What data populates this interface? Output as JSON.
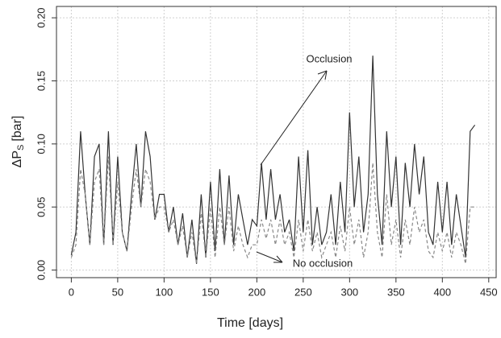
{
  "chart_data": {
    "type": "line",
    "x_label": "Time [days]",
    "y_label": {
      "main": "ΔP",
      "sub": "S",
      "unit": "[bar]"
    },
    "annotations": [
      {
        "text": "Occlusion"
      },
      {
        "text": "No occlusion"
      }
    ],
    "x": [
      0,
      5,
      10,
      15,
      20,
      25,
      30,
      35,
      40,
      45,
      50,
      55,
      60,
      65,
      70,
      75,
      80,
      85,
      90,
      95,
      100,
      105,
      110,
      115,
      120,
      125,
      130,
      135,
      140,
      145,
      150,
      155,
      160,
      165,
      170,
      175,
      180,
      185,
      190,
      195,
      200,
      205,
      210,
      215,
      220,
      225,
      230,
      235,
      240,
      245,
      250,
      255,
      260,
      265,
      270,
      275,
      280,
      285,
      290,
      295,
      300,
      305,
      310,
      315,
      320,
      325,
      330,
      335,
      340,
      345,
      350,
      355,
      360,
      365,
      370,
      375,
      380,
      385,
      390,
      395,
      400,
      405,
      410,
      415,
      420,
      425,
      430,
      435
    ],
    "series": [
      {
        "color": "#333333",
        "dash": "none",
        "values": [
          0.012,
          0.03,
          0.11,
          0.06,
          0.02,
          0.09,
          0.1,
          0.02,
          0.11,
          0.02,
          0.09,
          0.03,
          0.015,
          0.06,
          0.1,
          0.05,
          0.11,
          0.09,
          0.04,
          0.06,
          0.06,
          0.03,
          0.05,
          0.02,
          0.045,
          0.01,
          0.04,
          0.005,
          0.06,
          0.01,
          0.07,
          0.015,
          0.08,
          0.02,
          0.075,
          0.02,
          0.06,
          0.04,
          0.02,
          0.04,
          0.035,
          0.085,
          0.04,
          0.08,
          0.04,
          0.06,
          0.03,
          0.04,
          0.015,
          0.09,
          0.03,
          0.095,
          0.02,
          0.05,
          0.02,
          0.03,
          0.06,
          0.02,
          0.07,
          0.03,
          0.125,
          0.05,
          0.09,
          0.03,
          0.06,
          0.17,
          0.06,
          0.02,
          0.11,
          0.05,
          0.09,
          0.02,
          0.085,
          0.05,
          0.1,
          0.06,
          0.09,
          0.03,
          0.02,
          0.07,
          0.03,
          0.07,
          0.02,
          0.06,
          0.035,
          0.01,
          0.11,
          0.115
        ]
      },
      {
        "color": "#888888",
        "dash": "4 3",
        "values": [
          0.01,
          0.02,
          0.08,
          0.06,
          0.02,
          0.07,
          0.08,
          0.02,
          0.09,
          0.02,
          0.07,
          0.03,
          0.015,
          0.05,
          0.08,
          0.05,
          0.08,
          0.07,
          0.04,
          0.05,
          0.05,
          0.03,
          0.04,
          0.02,
          0.035,
          0.01,
          0.03,
          0.005,
          0.045,
          0.01,
          0.05,
          0.01,
          0.05,
          0.02,
          0.05,
          0.015,
          0.035,
          0.02,
          0.01,
          0.02,
          0.02,
          0.04,
          0.025,
          0.04,
          0.02,
          0.04,
          0.02,
          0.03,
          0.01,
          0.04,
          0.015,
          0.04,
          0.015,
          0.03,
          0.01,
          0.02,
          0.03,
          0.01,
          0.035,
          0.015,
          0.05,
          0.02,
          0.04,
          0.01,
          0.03,
          0.085,
          0.03,
          0.01,
          0.06,
          0.02,
          0.04,
          0.01,
          0.04,
          0.02,
          0.05,
          0.03,
          0.04,
          0.015,
          0.01,
          0.03,
          0.015,
          0.03,
          0.01,
          0.03,
          0.02,
          0.005,
          0.05,
          0.05
        ]
      }
    ],
    "xlim": [
      -16,
      458
    ],
    "xticks": [
      0,
      50,
      100,
      150,
      200,
      250,
      300,
      350,
      400,
      450
    ],
    "ylim": [
      -0.006,
      0.209
    ],
    "yticks": [
      {
        "value": 0,
        "label": "0.00"
      },
      0.05,
      {
        "value": 0.1,
        "label": "0.10"
      },
      0.15,
      {
        "value": 0.2,
        "label": "0.20"
      }
    ],
    "grid": true
  }
}
